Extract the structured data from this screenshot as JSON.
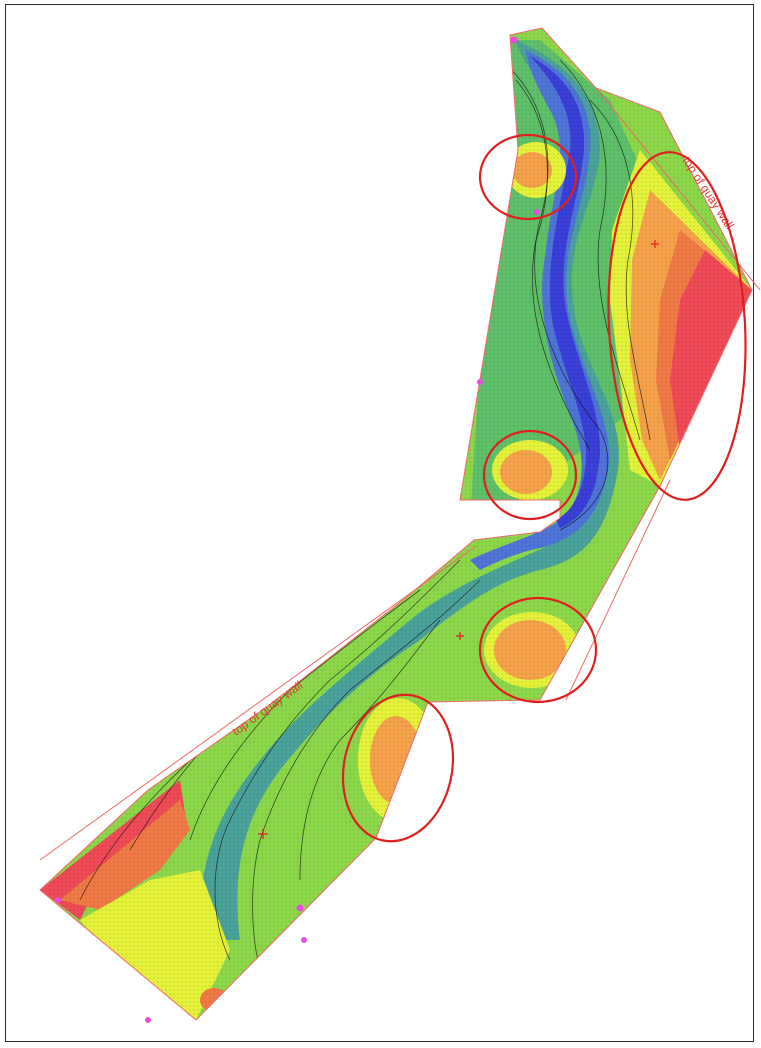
{
  "map": {
    "labels": {
      "quay_wall_right": "top of quay wall",
      "quay_wall_left": "top of quay wall"
    },
    "colors": {
      "deep": "#3a3fd8",
      "deep2": "#4f74d8",
      "mid": "#4aa39a",
      "mid2": "#5fc06a",
      "shallow": "#8cd84a",
      "yellow": "#e5f23a",
      "orange": "#f5a24a",
      "orange2": "#f07a45",
      "red": "#ef4a55",
      "annotation": "#e02020",
      "marker": "#e54de5",
      "boundary": "#ef6a6a"
    },
    "highlight_count": 5
  }
}
